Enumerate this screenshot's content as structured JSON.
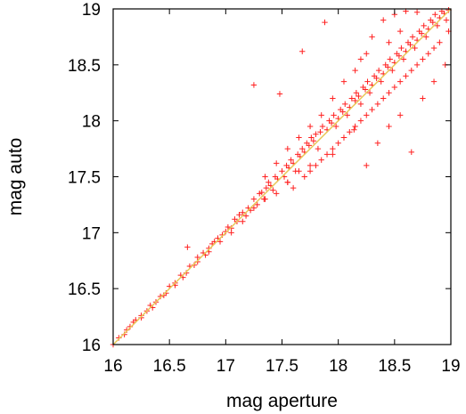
{
  "chart_data": {
    "type": "scatter",
    "xlabel": "mag aperture",
    "ylabel": "mag auto",
    "xlim": [
      16,
      19
    ],
    "ylim": [
      16,
      19
    ],
    "xticks": [
      "16",
      "16.5",
      "17",
      "17.5",
      "18",
      "18.5",
      "19"
    ],
    "yticks": [
      "16",
      "16.5",
      "17",
      "17.5",
      "18",
      "18.5",
      "19"
    ],
    "grid": false,
    "marker": "+",
    "point_color": "#ff2020",
    "reference_line": {
      "from": [
        16,
        16
      ],
      "to": [
        19,
        19
      ],
      "color": "#e8c85a"
    },
    "series": [
      {
        "points": [
          [
            16.0,
            16.0
          ],
          [
            16.05,
            16.06
          ],
          [
            16.1,
            16.09
          ],
          [
            16.12,
            16.13
          ],
          [
            16.18,
            16.2
          ],
          [
            16.2,
            16.22
          ],
          [
            16.25,
            16.24
          ],
          [
            16.3,
            16.3
          ],
          [
            16.33,
            16.35
          ],
          [
            16.38,
            16.38
          ],
          [
            16.42,
            16.43
          ],
          [
            16.47,
            16.46
          ],
          [
            16.5,
            16.52
          ],
          [
            16.55,
            16.55
          ],
          [
            16.6,
            16.62
          ],
          [
            16.62,
            16.6
          ],
          [
            16.66,
            16.87
          ],
          [
            16.68,
            16.7
          ],
          [
            16.72,
            16.71
          ],
          [
            16.75,
            16.78
          ],
          [
            16.8,
            16.82
          ],
          [
            16.82,
            16.8
          ],
          [
            16.85,
            16.86
          ],
          [
            16.88,
            16.9
          ],
          [
            16.9,
            16.92
          ],
          [
            16.93,
            16.95
          ],
          [
            16.97,
            16.98
          ],
          [
            17.0,
            17.01
          ],
          [
            17.02,
            17.05
          ],
          [
            17.05,
            17.04
          ],
          [
            17.08,
            17.12
          ],
          [
            17.1,
            17.1
          ],
          [
            17.12,
            17.16
          ],
          [
            17.15,
            17.18
          ],
          [
            17.18,
            17.15
          ],
          [
            17.2,
            17.22
          ],
          [
            17.22,
            17.2
          ],
          [
            17.25,
            17.3
          ],
          [
            17.25,
            18.32
          ],
          [
            17.28,
            17.25
          ],
          [
            17.3,
            17.35
          ],
          [
            17.32,
            17.36
          ],
          [
            17.34,
            17.3
          ],
          [
            17.36,
            17.4
          ],
          [
            17.38,
            17.45
          ],
          [
            17.4,
            17.42
          ],
          [
            17.42,
            17.38
          ],
          [
            17.44,
            17.5
          ],
          [
            17.46,
            17.48
          ],
          [
            17.48,
            18.24
          ],
          [
            17.5,
            17.55
          ],
          [
            17.52,
            17.5
          ],
          [
            17.54,
            17.6
          ],
          [
            17.55,
            17.45
          ],
          [
            17.56,
            17.58
          ],
          [
            17.58,
            17.65
          ],
          [
            17.6,
            17.62
          ],
          [
            17.62,
            17.55
          ],
          [
            17.64,
            17.7
          ],
          [
            17.66,
            17.68
          ],
          [
            17.68,
            17.75
          ],
          [
            17.68,
            18.62
          ],
          [
            17.7,
            17.72
          ],
          [
            17.72,
            17.8
          ],
          [
            17.74,
            17.78
          ],
          [
            17.75,
            17.55
          ],
          [
            17.76,
            17.85
          ],
          [
            17.78,
            17.82
          ],
          [
            17.8,
            17.88
          ],
          [
            17.82,
            17.75
          ],
          [
            17.84,
            17.9
          ],
          [
            17.86,
            17.95
          ],
          [
            17.88,
            18.88
          ],
          [
            17.9,
            17.92
          ],
          [
            17.92,
            18.0
          ],
          [
            17.94,
            17.98
          ],
          [
            17.95,
            17.7
          ],
          [
            17.96,
            18.05
          ],
          [
            17.98,
            17.95
          ],
          [
            18.0,
            18.02
          ],
          [
            18.02,
            18.1
          ],
          [
            18.04,
            18.08
          ],
          [
            18.05,
            17.85
          ],
          [
            18.06,
            18.15
          ],
          [
            18.08,
            18.05
          ],
          [
            18.1,
            18.12
          ],
          [
            18.12,
            18.2
          ],
          [
            18.14,
            17.92
          ],
          [
            18.15,
            18.18
          ],
          [
            18.16,
            18.25
          ],
          [
            18.18,
            18.22
          ],
          [
            18.2,
            18.15
          ],
          [
            18.2,
            18.55
          ],
          [
            18.22,
            18.3
          ],
          [
            18.24,
            18.28
          ],
          [
            18.25,
            17.6
          ],
          [
            18.26,
            18.35
          ],
          [
            18.28,
            18.25
          ],
          [
            18.3,
            18.32
          ],
          [
            18.32,
            18.4
          ],
          [
            18.34,
            18.38
          ],
          [
            18.35,
            17.8
          ],
          [
            18.36,
            18.45
          ],
          [
            18.38,
            18.35
          ],
          [
            18.4,
            18.42
          ],
          [
            18.42,
            18.5
          ],
          [
            18.44,
            18.48
          ],
          [
            18.45,
            17.95
          ],
          [
            18.46,
            18.55
          ],
          [
            18.48,
            18.45
          ],
          [
            18.5,
            18.52
          ],
          [
            18.52,
            18.6
          ],
          [
            18.54,
            18.58
          ],
          [
            18.55,
            18.05
          ],
          [
            18.56,
            18.65
          ],
          [
            18.58,
            18.55
          ],
          [
            18.6,
            18.62
          ],
          [
            18.62,
            18.7
          ],
          [
            18.64,
            18.68
          ],
          [
            18.65,
            17.72
          ],
          [
            18.66,
            18.75
          ],
          [
            18.68,
            18.65
          ],
          [
            18.7,
            18.72
          ],
          [
            18.72,
            18.8
          ],
          [
            18.74,
            18.78
          ],
          [
            18.75,
            18.2
          ],
          [
            18.76,
            18.85
          ],
          [
            18.78,
            18.75
          ],
          [
            18.8,
            18.82
          ],
          [
            18.82,
            18.9
          ],
          [
            18.84,
            18.88
          ],
          [
            18.85,
            18.35
          ],
          [
            18.86,
            18.95
          ],
          [
            18.88,
            18.85
          ],
          [
            18.9,
            18.92
          ],
          [
            18.92,
            18.98
          ],
          [
            18.94,
            18.96
          ],
          [
            18.95,
            18.5
          ],
          [
            18.96,
            18.9
          ],
          [
            18.98,
            18.99
          ],
          [
            18.3,
            18.75
          ],
          [
            18.4,
            18.9
          ],
          [
            18.5,
            18.95
          ],
          [
            18.6,
            18.98
          ],
          [
            18.7,
            18.97
          ],
          [
            18.45,
            18.7
          ],
          [
            18.55,
            18.8
          ],
          [
            18.25,
            18.6
          ],
          [
            18.15,
            18.45
          ],
          [
            18.05,
            18.35
          ],
          [
            17.95,
            18.2
          ],
          [
            17.85,
            18.05
          ],
          [
            17.75,
            17.95
          ],
          [
            17.65,
            17.85
          ],
          [
            17.55,
            17.75
          ],
          [
            17.45,
            17.62
          ],
          [
            17.35,
            17.5
          ],
          [
            17.6,
            17.4
          ],
          [
            17.7,
            17.5
          ],
          [
            17.8,
            17.6
          ],
          [
            17.9,
            17.7
          ],
          [
            18.0,
            17.8
          ],
          [
            18.1,
            17.9
          ],
          [
            18.2,
            18.0
          ],
          [
            18.3,
            18.1
          ],
          [
            18.4,
            18.2
          ],
          [
            18.5,
            18.3
          ],
          [
            18.6,
            18.4
          ],
          [
            18.7,
            18.5
          ],
          [
            18.8,
            18.6
          ],
          [
            18.9,
            18.7
          ],
          [
            18.98,
            18.8
          ],
          [
            18.85,
            18.65
          ],
          [
            18.75,
            18.55
          ],
          [
            18.65,
            18.45
          ],
          [
            18.55,
            18.35
          ],
          [
            18.45,
            18.25
          ],
          [
            18.35,
            18.15
          ],
          [
            18.25,
            18.05
          ],
          [
            18.15,
            17.95
          ],
          [
            18.05,
            17.85
          ],
          [
            17.95,
            17.75
          ],
          [
            17.85,
            17.65
          ],
          [
            17.75,
            17.6
          ],
          [
            17.65,
            17.55
          ],
          [
            17.55,
            17.45
          ],
          [
            17.45,
            17.35
          ],
          [
            17.35,
            17.3
          ],
          [
            17.25,
            17.22
          ],
          [
            17.15,
            17.1
          ],
          [
            17.05,
            17.0
          ],
          [
            16.95,
            16.92
          ],
          [
            16.85,
            16.83
          ],
          [
            16.75,
            16.74
          ],
          [
            16.65,
            16.64
          ],
          [
            16.55,
            16.53
          ],
          [
            16.45,
            16.44
          ],
          [
            16.35,
            16.33
          ],
          [
            16.25,
            16.26
          ],
          [
            16.15,
            16.16
          ]
        ]
      }
    ]
  }
}
